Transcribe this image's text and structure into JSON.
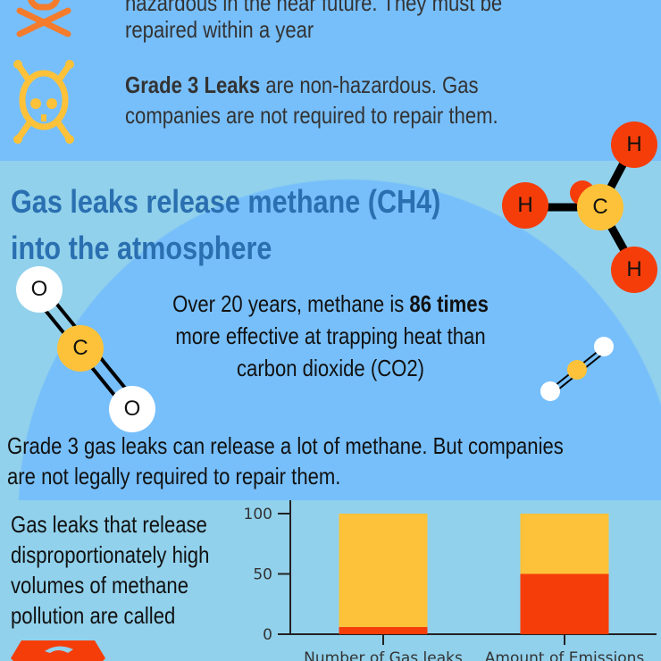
{
  "grade2": {
    "text_partial": "hazardous in the near future. They must be",
    "text_line2": "repaired within a year"
  },
  "grade3": {
    "bold": "Grade 3 Leaks",
    "rest1": " are non-hazardous. Gas",
    "line2": "companies are not required to repair them."
  },
  "heading": {
    "line1": "Gas leaks release methane (CH4)",
    "line2": "into the atmosphere"
  },
  "fact": {
    "pre": "Over 20 years, methane is ",
    "bold": "86 times",
    "line2": "more effective at trapping heat than",
    "line3": "carbon dioxide (CO2)"
  },
  "grade3_note": {
    "line1": "Grade 3 gas leaks can release a lot of methane. But companies",
    "line2": "are not legally required to repair them."
  },
  "callout": {
    "lines": [
      "Gas leaks that release",
      "disproportionately high",
      "volumes of methane",
      "pollution are called"
    ]
  },
  "molecules": {
    "methane": {
      "h": "H",
      "c": "C"
    },
    "co2": {
      "o": "O",
      "c": "C"
    }
  },
  "colors": {
    "top_bg": "#77bffb",
    "bg": "#91d1ec",
    "grade2": "#f47c2c",
    "grade3": "#fdc239",
    "red": "#f53d0a",
    "yellow": "#fdc239",
    "heading": "#2a6fb0"
  },
  "chart_data": {
    "type": "bar",
    "stacked": true,
    "categories": [
      "Number of Gas leaks",
      "Amount of Emissions"
    ],
    "series": [
      {
        "values": [
          6,
          50
        ],
        "color": "#f53d0a"
      },
      {
        "values": [
          94,
          50
        ],
        "color": "#fdc239"
      }
    ],
    "yticks": [
      "0",
      "50",
      "100"
    ],
    "ylim": [
      0,
      100
    ],
    "grid": false
  }
}
